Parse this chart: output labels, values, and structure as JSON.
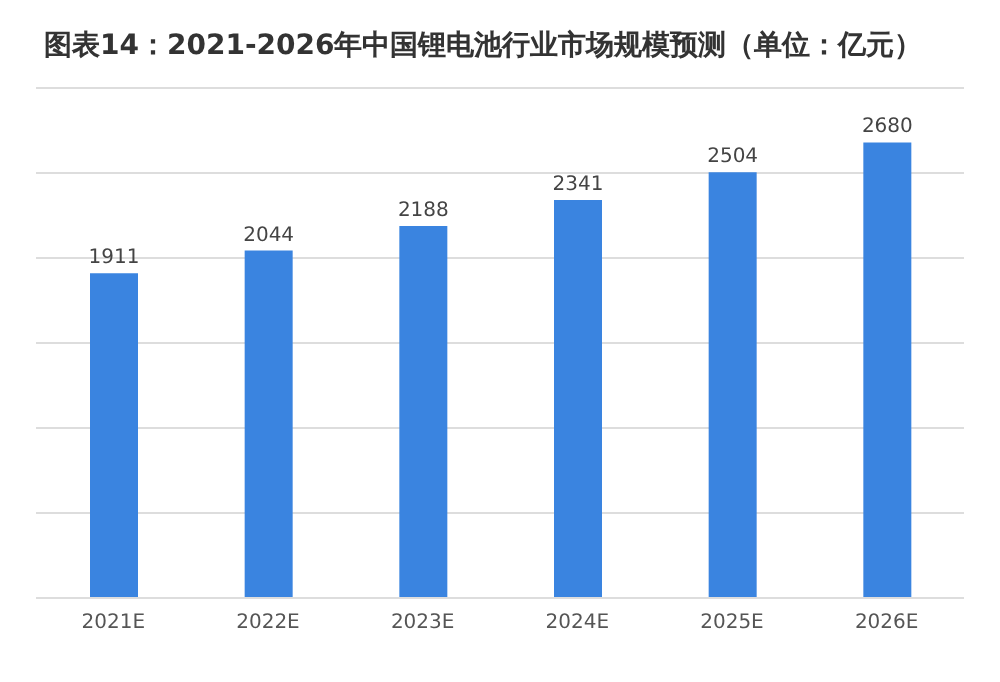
{
  "chart_data": {
    "type": "bar",
    "title": "图表14：2021-2026年中国锂电池行业市场规模预测（单位：亿元）",
    "categories": [
      "2021E",
      "2022E",
      "2023E",
      "2024E",
      "2025E",
      "2026E"
    ],
    "values": [
      1911,
      2044,
      2188,
      2341,
      2504,
      2680
    ],
    "color": "#3a84e0",
    "data_labels": true,
    "ylim": [
      0,
      3000
    ],
    "yticks": [
      {
        "value": 0,
        "label": null
      },
      {
        "value": 500,
        "label": null
      },
      {
        "value": 1000,
        "label": null
      },
      {
        "value": 1500,
        "label": null
      },
      {
        "value": 2000,
        "label": null
      },
      {
        "value": 2500,
        "label": null
      },
      {
        "value": 3000,
        "label": null
      }
    ],
    "tick_labels": "x",
    "grid": "y"
  }
}
